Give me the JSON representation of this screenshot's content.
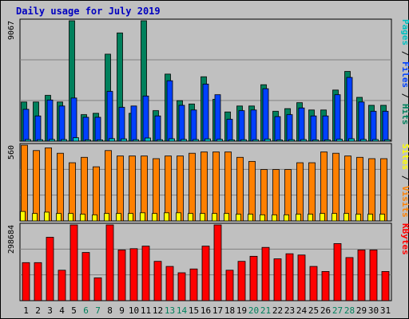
{
  "chart_data": {
    "type": "bar",
    "title": "Daily usage for July 2019",
    "days": [
      "1",
      "2",
      "3",
      "4",
      "5",
      "6",
      "7",
      "8",
      "9",
      "10",
      "11",
      "12",
      "13",
      "14",
      "15",
      "16",
      "17",
      "18",
      "19",
      "20",
      "21",
      "22",
      "23",
      "24",
      "25",
      "26",
      "27",
      "28",
      "29",
      "30",
      "31"
    ],
    "weekend_days": [
      "6",
      "7",
      "13",
      "14",
      "20",
      "21",
      "27",
      "28"
    ],
    "panels": [
      {
        "name": "hits-files-pages",
        "max_label": "9067",
        "max_value": 9067,
        "right_labels": [
          "Pages",
          "Files",
          "Hits"
        ],
        "series": [
          {
            "name": "Hits",
            "color": "#00805c",
            "values": [
              2950,
              2950,
              3450,
              2950,
              9067,
              2000,
              2100,
              6550,
              8150,
              2100,
              9067,
              2300,
              5050,
              3050,
              2800,
              4850,
              3150,
              2200,
              2650,
              2650,
              4250,
              2250,
              2450,
              2900,
              2350,
              2350,
              3850,
              5250,
              3300,
              2700,
              2700
            ]
          },
          {
            "name": "Files",
            "color": "#0040ff",
            "values": [
              2400,
              1900,
              3100,
              2650,
              3250,
              1800,
              1800,
              3750,
              2550,
              2650,
              3400,
              1900,
              4550,
              2700,
              2350,
              4300,
              3500,
              1650,
              2300,
              2350,
              3950,
              1850,
              2000,
              2500,
              1900,
              1900,
              3500,
              4800,
              2950,
              2250,
              2250
            ]
          },
          {
            "name": "Pages",
            "color": "#00c0c0",
            "values": [
              120,
              110,
              130,
              120,
              260,
              100,
              100,
              190,
              170,
              110,
              240,
              110,
              180,
              130,
              120,
              170,
              140,
              100,
              110,
              110,
              160,
              100,
              110,
              120,
              100,
              100,
              150,
              180,
              130,
              120,
              110
            ]
          }
        ]
      },
      {
        "name": "visits-sites",
        "max_label": "560",
        "max_value": 560,
        "right_labels": [
          "Sites",
          "Visits"
        ],
        "series": [
          {
            "name": "Visits",
            "color": "#ff8000",
            "values": [
              560,
              520,
              540,
              500,
              430,
              470,
              400,
              520,
              480,
              480,
              480,
              460,
              480,
              480,
              500,
              510,
              510,
              510,
              470,
              440,
              380,
              380,
              380,
              430,
              430,
              510,
              500,
              480,
              470,
              460,
              460
            ]
          },
          {
            "name": "Sites",
            "color": "#ffff00",
            "values": [
              70,
              55,
              65,
              55,
              55,
              50,
              45,
              55,
              55,
              55,
              60,
              55,
              60,
              60,
              55,
              55,
              55,
              55,
              50,
              50,
              45,
              45,
              45,
              50,
              50,
              55,
              55,
              55,
              50,
              50,
              50
            ]
          }
        ]
      },
      {
        "name": "kbytes",
        "max_label": "298684",
        "max_value": 298684,
        "right_labels": [
          "KBytes"
        ],
        "series": [
          {
            "name": "KBytes",
            "color": "#ff0000",
            "values": [
              150000,
              150000,
              250000,
              120000,
              298684,
              190000,
              90000,
              298684,
              200000,
              205000,
              215000,
              155000,
              135000,
              110000,
              125000,
              215000,
              298684,
              120000,
              155000,
              175000,
              210000,
              165000,
              185000,
              180000,
              135000,
              115000,
              225000,
              170000,
              200000,
              200000,
              115000
            ]
          }
        ]
      }
    ]
  }
}
